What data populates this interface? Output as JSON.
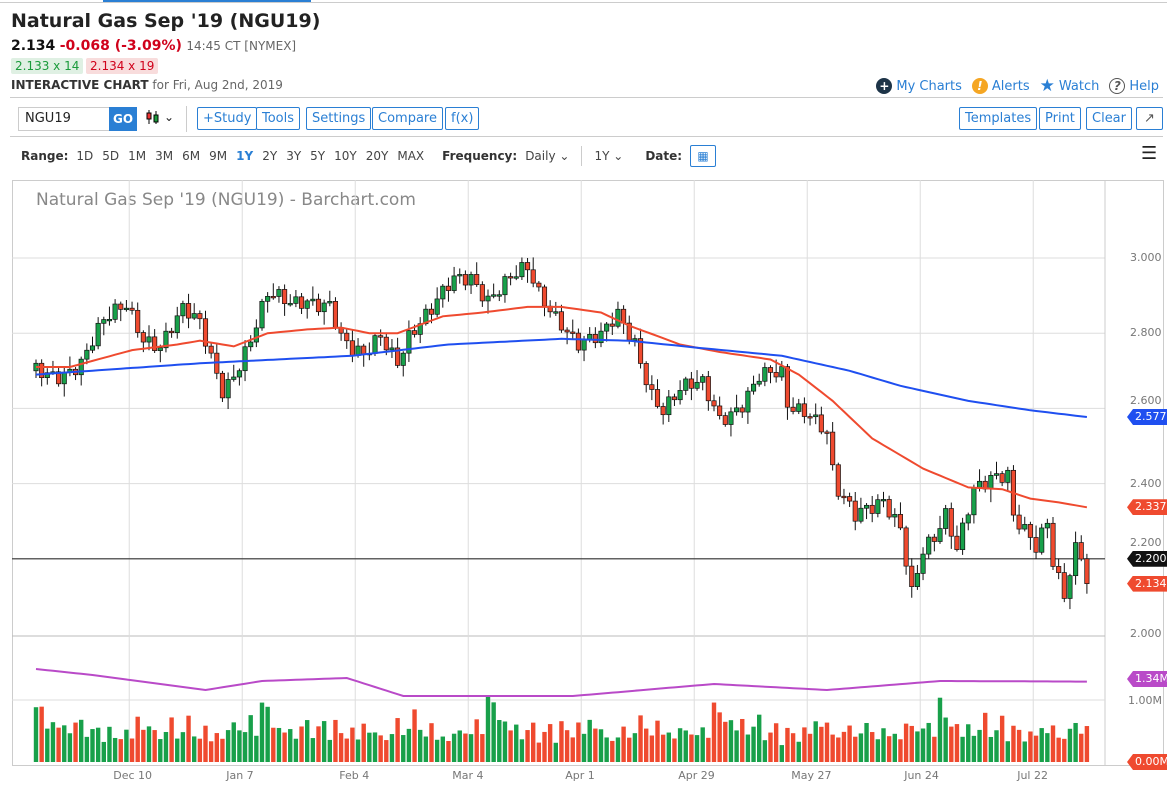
{
  "header": {
    "title": "Natural Gas Sep '19 (NGU19)",
    "last": "2.134",
    "change": "-0.068 (-3.09%)",
    "time": "14:45 CT [NYMEX]",
    "bid": "2.133 x 14",
    "ask": "2.134 x 19",
    "ic_label": "INTERACTIVE CHART",
    "ic_date": "for Fri, Aug 2nd, 2019"
  },
  "links": {
    "my_charts": "My Charts",
    "alerts": "Alerts",
    "watch": "Watch",
    "help": "Help"
  },
  "toolbar": {
    "symbol": "NGU19",
    "go": "GO",
    "study": "+Study",
    "tools": "Tools",
    "settings": "Settings",
    "compare": "Compare",
    "fx": "f(x)",
    "templates": "Templates",
    "print": "Print",
    "clear": "Clear",
    "expand": "↗"
  },
  "range": {
    "label": "Range:",
    "options": [
      "1D",
      "5D",
      "1M",
      "3M",
      "6M",
      "9M",
      "1Y",
      "2Y",
      "3Y",
      "5Y",
      "10Y",
      "20Y",
      "MAX"
    ],
    "active": "1Y",
    "freq_label": "Frequency:",
    "freq": "Daily",
    "period": "1Y",
    "date_label": "Date:"
  },
  "chart_data": {
    "type": "candlestick",
    "title": "Natural Gas Sep '19 (NGU19) - Barchart.com",
    "y_ticks": [
      "2.000",
      "2.200",
      "2.400",
      "2.600",
      "2.800",
      "3.000"
    ],
    "ylim": [
      2.0,
      3.0
    ],
    "x_labels": [
      "Dec 10",
      "Jan 7",
      "Feb 4",
      "Mar 4",
      "Apr 1",
      "Apr 29",
      "May 27",
      "Jun 24",
      "Jul 22"
    ],
    "n_days": 187,
    "close_path": [
      [
        0,
        2.7
      ],
      [
        4,
        2.7
      ],
      [
        8,
        2.72
      ],
      [
        12,
        2.82
      ],
      [
        16,
        2.88
      ],
      [
        19,
        2.8
      ],
      [
        22,
        2.77
      ],
      [
        26,
        2.85
      ],
      [
        29,
        2.82
      ],
      [
        31,
        2.74
      ],
      [
        33,
        2.66
      ],
      [
        35,
        2.7
      ],
      [
        38,
        2.78
      ],
      [
        41,
        2.89
      ],
      [
        45,
        2.88
      ],
      [
        48,
        2.9
      ],
      [
        52,
        2.88
      ],
      [
        54,
        2.78
      ],
      [
        56,
        2.74
      ],
      [
        58,
        2.73
      ],
      [
        61,
        2.8
      ],
      [
        64,
        2.74
      ],
      [
        66,
        2.8
      ],
      [
        70,
        2.85
      ],
      [
        74,
        2.94
      ],
      [
        77,
        2.96
      ],
      [
        80,
        2.9
      ],
      [
        84,
        2.94
      ],
      [
        87,
        2.96
      ],
      [
        89,
        2.9
      ],
      [
        93,
        2.84
      ],
      [
        96,
        2.78
      ],
      [
        100,
        2.78
      ],
      [
        103,
        2.84
      ],
      [
        106,
        2.78
      ],
      [
        109,
        2.65
      ],
      [
        111,
        2.6
      ],
      [
        114,
        2.64
      ],
      [
        118,
        2.66
      ],
      [
        121,
        2.58
      ],
      [
        125,
        2.62
      ],
      [
        128,
        2.68
      ],
      [
        132,
        2.68
      ],
      [
        133,
        2.6
      ],
      [
        137,
        2.6
      ],
      [
        140,
        2.55
      ],
      [
        141,
        2.44
      ],
      [
        142,
        2.38
      ],
      [
        145,
        2.3
      ],
      [
        148,
        2.33
      ],
      [
        150,
        2.36
      ],
      [
        153,
        2.3
      ],
      [
        155,
        2.12
      ],
      [
        157,
        2.22
      ],
      [
        159,
        2.24
      ],
      [
        161,
        2.3
      ],
      [
        163,
        2.22
      ],
      [
        166,
        2.4
      ],
      [
        169,
        2.43
      ],
      [
        172,
        2.42
      ],
      [
        173,
        2.3
      ],
      [
        175,
        2.26
      ],
      [
        177,
        2.22
      ],
      [
        179,
        2.3
      ],
      [
        180,
        2.2
      ],
      [
        182,
        2.12
      ],
      [
        184,
        2.24
      ],
      [
        185,
        2.22
      ],
      [
        186,
        2.134
      ]
    ],
    "ma50": {
      "last": "2.337",
      "color": "#ef4a2f",
      "path": [
        [
          0,
          2.71
        ],
        [
          6,
          2.71
        ],
        [
          17,
          2.755
        ],
        [
          25,
          2.77
        ],
        [
          29,
          2.78
        ],
        [
          35,
          2.765
        ],
        [
          41,
          2.8
        ],
        [
          48,
          2.81
        ],
        [
          54,
          2.815
        ],
        [
          59,
          2.8
        ],
        [
          64,
          2.8
        ],
        [
          72,
          2.845
        ],
        [
          79,
          2.855
        ],
        [
          87,
          2.87
        ],
        [
          93,
          2.87
        ],
        [
          100,
          2.855
        ],
        [
          105,
          2.82
        ],
        [
          114,
          2.77
        ],
        [
          121,
          2.75
        ],
        [
          130,
          2.73
        ],
        [
          135,
          2.69
        ],
        [
          141,
          2.62
        ],
        [
          148,
          2.52
        ],
        [
          157,
          2.44
        ],
        [
          165,
          2.39
        ],
        [
          171,
          2.385
        ],
        [
          176,
          2.36
        ],
        [
          181,
          2.35
        ],
        [
          186,
          2.337
        ]
      ]
    },
    "ma200": {
      "last": "2.577",
      "color": "#1f4ff0",
      "path": [
        [
          0,
          2.69
        ],
        [
          29,
          2.72
        ],
        [
          56,
          2.74
        ],
        [
          73,
          2.77
        ],
        [
          93,
          2.785
        ],
        [
          105,
          2.78
        ],
        [
          118,
          2.76
        ],
        [
          132,
          2.74
        ],
        [
          144,
          2.7
        ],
        [
          153,
          2.66
        ],
        [
          165,
          2.62
        ],
        [
          176,
          2.595
        ],
        [
          186,
          2.577
        ]
      ]
    },
    "hline": {
      "value": 2.2,
      "label": "2.200"
    },
    "last_label": "2.134",
    "volume": {
      "ticks": [
        "1.00M"
      ],
      "avg_label": "1.34M",
      "zero_label": "0.00M",
      "avg_path": [
        [
          0,
          1.55
        ],
        [
          10,
          1.45
        ],
        [
          30,
          1.2
        ],
        [
          40,
          1.35
        ],
        [
          55,
          1.4
        ],
        [
          65,
          1.1
        ],
        [
          95,
          1.1
        ],
        [
          120,
          1.3
        ],
        [
          140,
          1.2
        ],
        [
          160,
          1.35
        ],
        [
          186,
          1.34
        ]
      ],
      "values": [
        1.1,
        0.9,
        0.6,
        0.7,
        0.5,
        0.6,
        0.45,
        0.55,
        0.7,
        0.4,
        0.5,
        0.65,
        0.35,
        0.6,
        0.5,
        0.4,
        0.55,
        0.45,
        0.7,
        0.5,
        0.6,
        0.45,
        0.35,
        0.5,
        0.65,
        0.4,
        0.55,
        0.75,
        0.5,
        0.45,
        0.6,
        0.4,
        0.5,
        0.35,
        0.55,
        0.6,
        0.45,
        0.5,
        0.7,
        0.4
      ]
    }
  }
}
